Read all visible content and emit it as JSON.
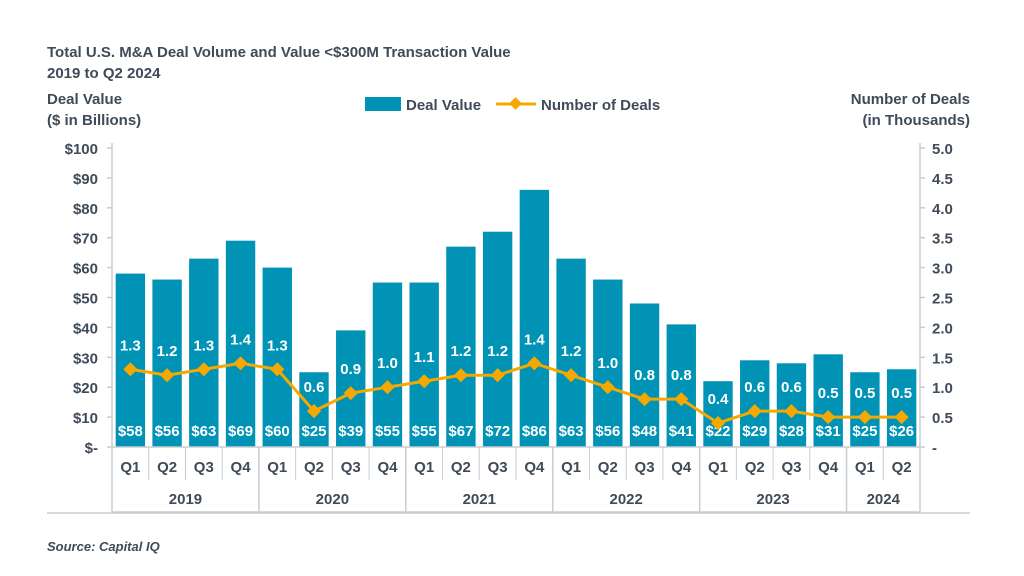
{
  "chart_data": {
    "type": "bar",
    "title": "Total U.S. M&A Deal Volume and Value <$300M Transaction Value",
    "subtitle": "2019 to Q2 2024",
    "ylabel_left": [
      "Deal Value",
      "($ in Billions)"
    ],
    "ylabel_right": [
      "Number of Deals",
      "(in Thousands)"
    ],
    "source": "Source: Capital IQ",
    "legend": {
      "placement": "top-center",
      "entries": [
        "Deal Value",
        "Number of Deals"
      ]
    },
    "colors": {
      "bar": "#0093b5",
      "line": "#f5a800",
      "text": "#3f4b58"
    },
    "ylim_left": [
      0,
      100
    ],
    "ylim_right": [
      0,
      5.0
    ],
    "left_ticks": [
      "$-",
      "$10",
      "$20",
      "$30",
      "$40",
      "$50",
      "$60",
      "$70",
      "$80",
      "$90",
      "$100"
    ],
    "right_ticks": [
      "-",
      "0.5",
      "1.0",
      "1.5",
      "2.0",
      "2.5",
      "3.0",
      "3.5",
      "4.0",
      "4.5",
      "5.0"
    ],
    "categories": [
      "Q1",
      "Q2",
      "Q3",
      "Q4",
      "Q1",
      "Q2",
      "Q3",
      "Q4",
      "Q1",
      "Q2",
      "Q3",
      "Q4",
      "Q1",
      "Q2",
      "Q3",
      "Q4",
      "Q1",
      "Q2",
      "Q3",
      "Q4",
      "Q1",
      "Q2"
    ],
    "years": [
      {
        "label": "2019",
        "quarters": 4
      },
      {
        "label": "2020",
        "quarters": 4
      },
      {
        "label": "2021",
        "quarters": 4
      },
      {
        "label": "2022",
        "quarters": 4
      },
      {
        "label": "2023",
        "quarters": 4
      },
      {
        "label": "2024",
        "quarters": 2
      }
    ],
    "series": [
      {
        "name": "Deal Value",
        "type": "bar",
        "axis": "left",
        "values": [
          58,
          56,
          63,
          69,
          60,
          25,
          39,
          55,
          55,
          67,
          72,
          86,
          63,
          56,
          48,
          41,
          22,
          29,
          28,
          31,
          25,
          26
        ],
        "labels": [
          "$58",
          "$56",
          "$63",
          "$69",
          "$60",
          "$25",
          "$39",
          "$55",
          "$55",
          "$67",
          "$72",
          "$86",
          "$63",
          "$56",
          "$48",
          "$41",
          "$22",
          "$29",
          "$28",
          "$31",
          "$25",
          "$26"
        ]
      },
      {
        "name": "Number of Deals",
        "type": "line",
        "axis": "right",
        "values": [
          1.3,
          1.2,
          1.3,
          1.4,
          1.3,
          0.6,
          0.9,
          1.0,
          1.1,
          1.2,
          1.2,
          1.4,
          1.2,
          1.0,
          0.8,
          0.8,
          0.4,
          0.6,
          0.6,
          0.5,
          0.5,
          0.5
        ],
        "labels": [
          "1.3",
          "1.2",
          "1.3",
          "1.4",
          "1.3",
          "0.6",
          "0.9",
          "1.0",
          "1.1",
          "1.2",
          "1.2",
          "1.4",
          "1.2",
          "1.0",
          "0.8",
          "0.8",
          "0.4",
          "0.6",
          "0.6",
          "0.5",
          "0.5",
          "0.5"
        ]
      }
    ]
  }
}
